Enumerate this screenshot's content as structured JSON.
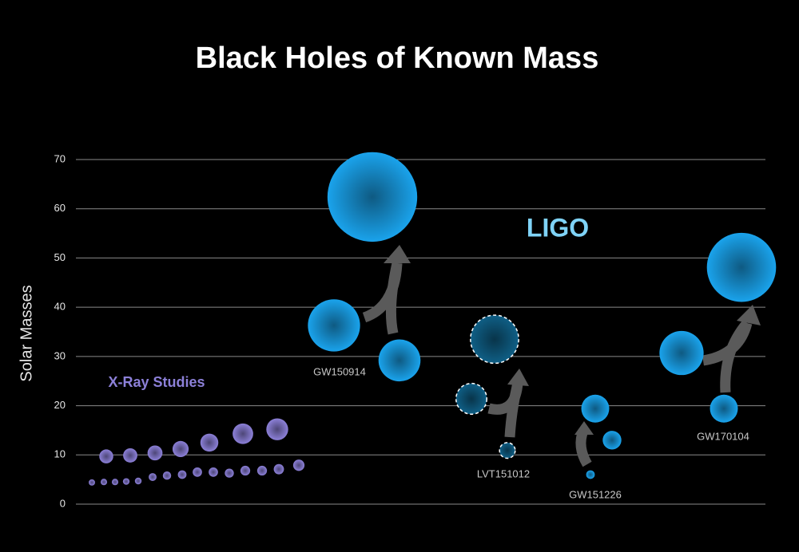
{
  "chart_data": {
    "type": "bubble",
    "title": "Black Holes of Known Mass",
    "y_label": "Solar Masses",
    "annotation": "LIGO",
    "ylim": [
      0,
      70
    ],
    "yticks": [
      0,
      10,
      20,
      30,
      40,
      50,
      60,
      70
    ],
    "grid": true,
    "series": [
      {
        "name": "X-Ray Studies",
        "color": "#8c80d8",
        "values": [
          4.4,
          4.5,
          9.7,
          4.5,
          4.6,
          9.9,
          4.7,
          5.5,
          10.4,
          5.8,
          11.2,
          6.0,
          6.5,
          12.5,
          6.5,
          6.3,
          14.3,
          6.8,
          6.8,
          15.2,
          7.1,
          7.9
        ]
      },
      {
        "name": "GW150914",
        "color": "#1aa3ec",
        "values": [
          36.3,
          29.2,
          62.4
        ]
      },
      {
        "name": "LVT151012",
        "color": "#0f5f86",
        "dashed": true,
        "values": [
          21.4,
          10.9,
          33.5
        ]
      },
      {
        "name": "GW151226",
        "color": "#1aa3ec",
        "values": [
          19.4,
          13.0,
          6.0
        ]
      },
      {
        "name": "GW170104",
        "color": "#1aa3ec",
        "values": [
          30.7,
          19.4,
          48.1
        ]
      }
    ]
  }
}
